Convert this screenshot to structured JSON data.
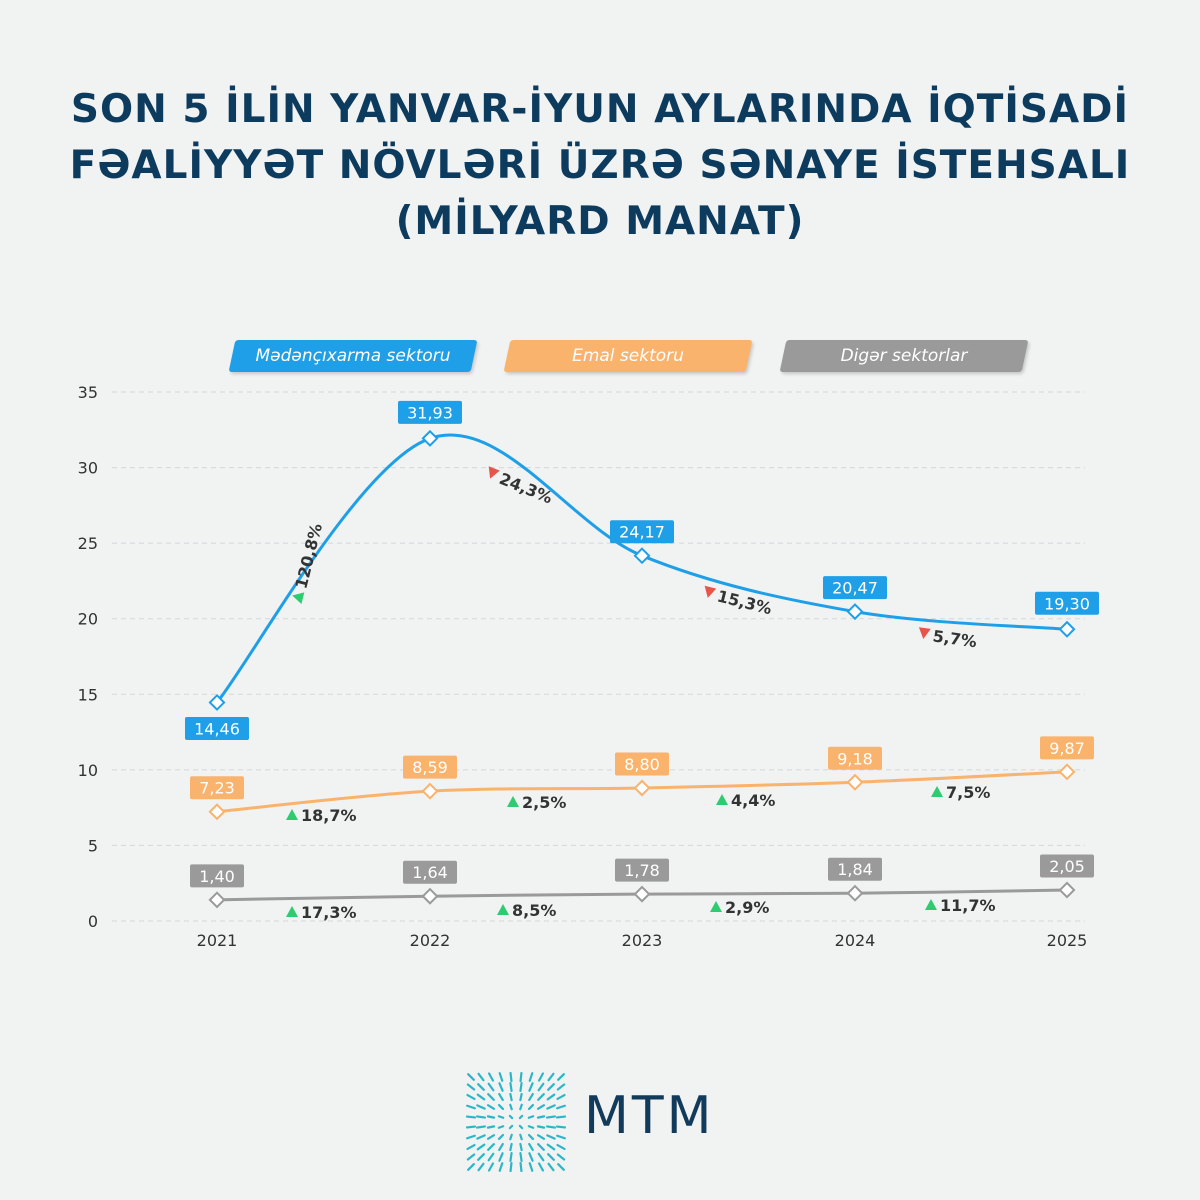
{
  "title_lines": [
    "SON 5 İLİN YANVAR-İYUN AYLARINDA İQTİSADİ",
    "FƏALİYYƏT NÖVLƏRİ ÜZRƏ SƏNAYE İSTEHSALI",
    "(MİLYARD MANAT)"
  ],
  "colors": {
    "title": "#0d3b5e",
    "mining": "#1e9fe8",
    "processing": "#f9b36c",
    "other": "#9a9a9a",
    "up": "#2ecc71",
    "down": "#e8534a",
    "grid": "#d4d7da",
    "logo": "#123a5a",
    "logo_icon": "#2ab7c9"
  },
  "logo": {
    "text": "MTM",
    "icon": "radial-grid-logo-icon"
  },
  "chart_data": {
    "type": "line",
    "x": [
      "2021",
      "2022",
      "2023",
      "2024",
      "2025"
    ],
    "ylim": [
      0,
      35
    ],
    "yticks": [
      "0",
      "5",
      "10",
      "15",
      "20",
      "25",
      "30",
      "35"
    ],
    "grid": true,
    "legend_position": "top",
    "series": [
      {
        "key": "mining",
        "name": "Mədənçıxarma sektoru",
        "values": [
          14.46,
          31.93,
          24.17,
          20.47,
          19.3
        ],
        "labels": [
          "14,46",
          "31,93",
          "24,17",
          "20,47",
          "19,30"
        ],
        "changes": [
          {
            "text": "120,8%",
            "dir": "up"
          },
          {
            "text": "24,3%",
            "dir": "down"
          },
          {
            "text": "15,3%",
            "dir": "down"
          },
          {
            "text": "5,7%",
            "dir": "down"
          }
        ]
      },
      {
        "key": "processing",
        "name": "Emal sektoru",
        "values": [
          7.23,
          8.59,
          8.8,
          9.18,
          9.87
        ],
        "labels": [
          "7,23",
          "8,59",
          "8,80",
          "9,18",
          "9,87"
        ],
        "changes": [
          {
            "text": "18,7%",
            "dir": "up"
          },
          {
            "text": "2,5%",
            "dir": "up"
          },
          {
            "text": "4,4%",
            "dir": "up"
          },
          {
            "text": "7,5%",
            "dir": "up"
          }
        ]
      },
      {
        "key": "other",
        "name": "Digər sektorlar",
        "values": [
          1.4,
          1.64,
          1.78,
          1.84,
          2.05
        ],
        "labels": [
          "1,40",
          "1,64",
          "1,78",
          "1,84",
          "2,05"
        ],
        "changes": [
          {
            "text": "17,3%",
            "dir": "up"
          },
          {
            "text": "8,5%",
            "dir": "up"
          },
          {
            "text": "2,9%",
            "dir": "up"
          },
          {
            "text": "11,7%",
            "dir": "up"
          }
        ]
      }
    ]
  }
}
